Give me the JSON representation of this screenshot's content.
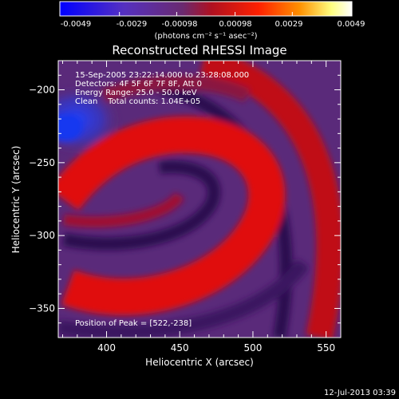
{
  "colorbar": {
    "tick_labels": [
      "-0.0049",
      "-0.0029",
      "-0.00098",
      "0.00098",
      "0.0029",
      "0.0049"
    ],
    "tick_values": [
      -0.0049,
      -0.0029,
      -0.00098,
      0.00098,
      0.0029,
      0.0049
    ],
    "units_label": "(photons cm⁻² s⁻¹ asec⁻²)",
    "range": [
      -0.0049,
      0.0049
    ],
    "colors": [
      "#0000ff",
      "#6a2aa8",
      "#7a1a40",
      "#d01010",
      "#ff3000",
      "#ff9800",
      "#ffff90",
      "#ffffff"
    ]
  },
  "annotations": {
    "line1": "15-Sep-2005 23:22:14.000 to 23:28:08.000",
    "line2": "Detectors: 4F 5F 6F 7F 8F, Att 0",
    "line3": "Energy Range: 25.0 - 50.0 keV",
    "line4": "Clean    Total counts: 1.04E+05",
    "peak": "Position of Peak = [522,-238]"
  },
  "footer": {
    "timestamp": "12-Jul-2013 03:39"
  },
  "chart_data": {
    "type": "heatmap",
    "title": "Reconstructed RHESSI Image",
    "xlabel": "Heliocentric X (arcsec)",
    "ylabel": "Heliocentric Y (arcsec)",
    "xlim": [
      367,
      560
    ],
    "ylim": [
      -370,
      -180
    ],
    "x_ticks": [
      400,
      450,
      500,
      550
    ],
    "y_ticks": [
      -350,
      -300,
      -250,
      -200
    ],
    "peak_position": [
      522,
      -238
    ],
    "colors": {
      "background": "#5a2a7a",
      "ring": "#d80c10",
      "dark_band": "#2a1050",
      "negative": "#1a3ae0"
    }
  }
}
